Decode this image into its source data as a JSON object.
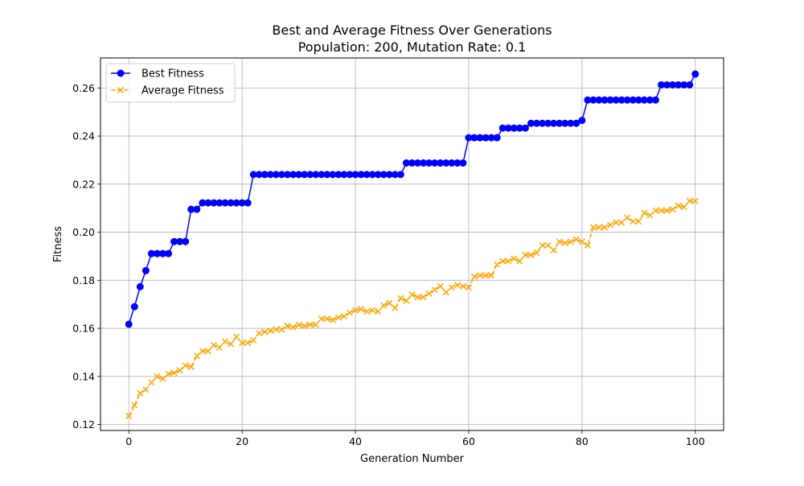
{
  "chart_data": {
    "type": "line",
    "title": "Best and Average Fitness Over Generations",
    "subtitle": "Population: 200, Mutation Rate: 0.1",
    "xlabel": "Generation Number",
    "ylabel": "Fitness",
    "xlim": [
      -5,
      105
    ],
    "ylim": [
      0.1175,
      0.2725
    ],
    "xticks": [
      "0",
      "20",
      "40",
      "60",
      "80",
      "100"
    ],
    "yticks": [
      "0.12",
      "0.14",
      "0.16",
      "0.18",
      "0.20",
      "0.22",
      "0.24",
      "0.26"
    ],
    "grid": true,
    "legend_position": "upper-left",
    "x": [
      0,
      1,
      2,
      3,
      4,
      5,
      6,
      7,
      8,
      9,
      10,
      11,
      12,
      13,
      14,
      15,
      16,
      17,
      18,
      19,
      20,
      21,
      22,
      23,
      24,
      25,
      26,
      27,
      28,
      29,
      30,
      31,
      32,
      33,
      34,
      35,
      36,
      37,
      38,
      39,
      40,
      41,
      42,
      43,
      44,
      45,
      46,
      47,
      48,
      49,
      50,
      51,
      52,
      53,
      54,
      55,
      56,
      57,
      58,
      59,
      60,
      61,
      62,
      63,
      64,
      65,
      66,
      67,
      68,
      69,
      70,
      71,
      72,
      73,
      74,
      75,
      76,
      77,
      78,
      79,
      80,
      81,
      82,
      83,
      84,
      85,
      86,
      87,
      88,
      89,
      90,
      91,
      92,
      93,
      94,
      95,
      96,
      97,
      98,
      99,
      100
    ],
    "series": [
      {
        "name": "Best Fitness",
        "color": "#0000ff",
        "marker": "circle",
        "line_style": "solid",
        "values": [
          0.1617,
          0.169,
          0.1773,
          0.184,
          0.1911,
          0.1911,
          0.1911,
          0.1911,
          0.1961,
          0.1961,
          0.1961,
          0.2095,
          0.2095,
          0.2122,
          0.2122,
          0.2122,
          0.2122,
          0.2122,
          0.2122,
          0.2122,
          0.2122,
          0.2122,
          0.224,
          0.224,
          0.224,
          0.224,
          0.224,
          0.224,
          0.224,
          0.224,
          0.224,
          0.224,
          0.224,
          0.224,
          0.224,
          0.224,
          0.224,
          0.224,
          0.224,
          0.224,
          0.224,
          0.224,
          0.224,
          0.224,
          0.224,
          0.224,
          0.224,
          0.224,
          0.224,
          0.2288,
          0.2288,
          0.2288,
          0.2288,
          0.2288,
          0.2288,
          0.2288,
          0.2288,
          0.2288,
          0.2288,
          0.2288,
          0.2393,
          0.2393,
          0.2393,
          0.2393,
          0.2393,
          0.2393,
          0.2433,
          0.2433,
          0.2433,
          0.2433,
          0.2433,
          0.2453,
          0.2453,
          0.2453,
          0.2453,
          0.2453,
          0.2453,
          0.2453,
          0.2453,
          0.2453,
          0.2465,
          0.255,
          0.255,
          0.255,
          0.255,
          0.255,
          0.255,
          0.255,
          0.255,
          0.255,
          0.255,
          0.255,
          0.255,
          0.255,
          0.2613,
          0.2613,
          0.2613,
          0.2613,
          0.2613,
          0.2613,
          0.2658
        ]
      },
      {
        "name": "Average Fitness",
        "color": "#ffa500",
        "marker": "x",
        "line_style": "dashed",
        "values": [
          0.1235,
          0.128,
          0.133,
          0.1345,
          0.1375,
          0.14,
          0.139,
          0.141,
          0.1415,
          0.1425,
          0.1445,
          0.144,
          0.1485,
          0.1505,
          0.1505,
          0.153,
          0.152,
          0.1545,
          0.1535,
          0.1565,
          0.154,
          0.154,
          0.155,
          0.158,
          0.1585,
          0.159,
          0.1595,
          0.1595,
          0.161,
          0.1605,
          0.1615,
          0.161,
          0.1615,
          0.1615,
          0.164,
          0.164,
          0.1635,
          0.1645,
          0.165,
          0.1665,
          0.1675,
          0.168,
          0.167,
          0.1675,
          0.167,
          0.1695,
          0.1705,
          0.1685,
          0.1725,
          0.1715,
          0.174,
          0.173,
          0.173,
          0.1745,
          0.176,
          0.1775,
          0.175,
          0.177,
          0.178,
          0.1775,
          0.177,
          0.1815,
          0.182,
          0.182,
          0.182,
          0.1865,
          0.188,
          0.188,
          0.189,
          0.188,
          0.1905,
          0.1905,
          0.1915,
          0.1945,
          0.1945,
          0.1925,
          0.196,
          0.1955,
          0.196,
          0.197,
          0.196,
          0.1945,
          0.202,
          0.202,
          0.202,
          0.203,
          0.204,
          0.204,
          0.206,
          0.2045,
          0.2045,
          0.208,
          0.207,
          0.209,
          0.209,
          0.209,
          0.2095,
          0.211,
          0.2105,
          0.213,
          0.213
        ]
      }
    ]
  }
}
